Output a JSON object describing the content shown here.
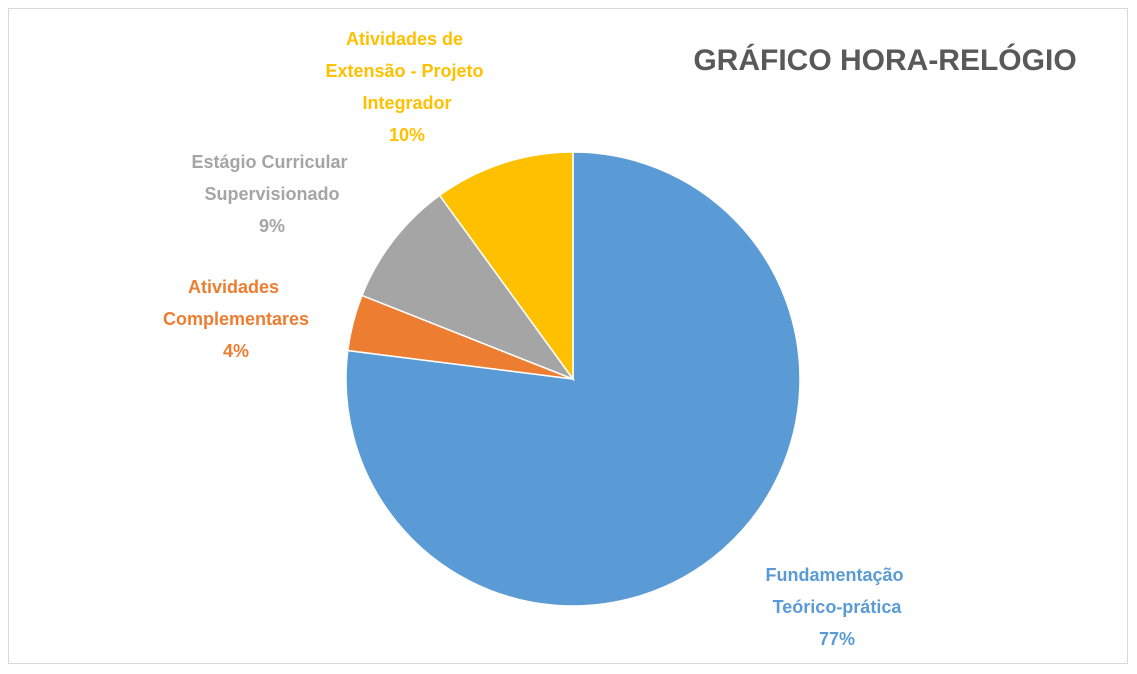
{
  "chart_data": {
    "type": "pie",
    "title": "GRÁFICO HORA-RELÓGIO",
    "categories": [
      "Fundamentação Teórico-prática",
      "Atividades Complementares",
      "Estágio Curricular Supervisionado",
      "Atividades de Extensão - Projeto Integrador"
    ],
    "values": [
      77,
      4,
      9,
      10
    ],
    "value_labels": [
      "77%",
      "4%",
      "9%",
      "10%"
    ],
    "colors": [
      "#5b9bd5",
      "#ed7d31",
      "#a5a5a5",
      "#ffc000"
    ]
  }
}
